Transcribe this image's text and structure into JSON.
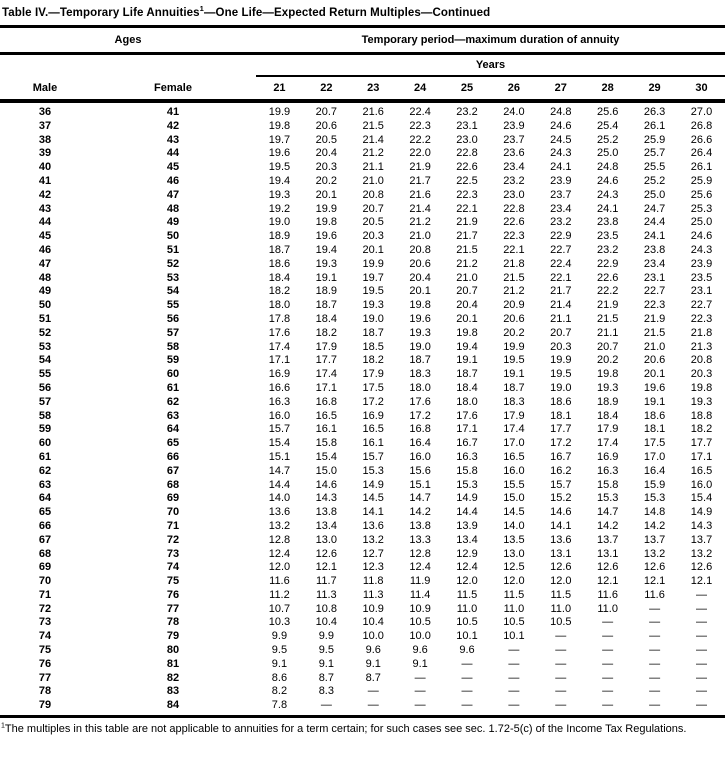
{
  "title": {
    "pre": "Table IV.—Temporary Life Annuities",
    "sup": "1",
    "post": "—One Life—Expected Return Multiples—Continued"
  },
  "header": {
    "ages_label": "Ages",
    "period_label": "Temporary period—maximum duration of annuity",
    "years_label": "Years",
    "male_label": "Male",
    "female_label": "Female",
    "year_columns": [
      "21",
      "22",
      "23",
      "24",
      "25",
      "26",
      "27",
      "28",
      "29",
      "30"
    ]
  },
  "rows": [
    {
      "male": "36",
      "female": "41",
      "values": [
        "19.9",
        "20.7",
        "21.6",
        "22.4",
        "23.2",
        "24.0",
        "24.8",
        "25.6",
        "26.3",
        "27.0"
      ]
    },
    {
      "male": "37",
      "female": "42",
      "values": [
        "19.8",
        "20.6",
        "21.5",
        "22.3",
        "23.1",
        "23.9",
        "24.6",
        "25.4",
        "26.1",
        "26.8"
      ]
    },
    {
      "male": "38",
      "female": "43",
      "values": [
        "19.7",
        "20.5",
        "21.4",
        "22.2",
        "23.0",
        "23.7",
        "24.5",
        "25.2",
        "25.9",
        "26.6"
      ]
    },
    {
      "male": "39",
      "female": "44",
      "values": [
        "19.6",
        "20.4",
        "21.2",
        "22.0",
        "22.8",
        "23.6",
        "24.3",
        "25.0",
        "25.7",
        "26.4"
      ]
    },
    {
      "male": "40",
      "female": "45",
      "values": [
        "19.5",
        "20.3",
        "21.1",
        "21.9",
        "22.6",
        "23.4",
        "24.1",
        "24.8",
        "25.5",
        "26.1"
      ]
    },
    {
      "male": "41",
      "female": "46",
      "values": [
        "19.4",
        "20.2",
        "21.0",
        "21.7",
        "22.5",
        "23.2",
        "23.9",
        "24.6",
        "25.2",
        "25.9"
      ]
    },
    {
      "male": "42",
      "female": "47",
      "values": [
        "19.3",
        "20.1",
        "20.8",
        "21.6",
        "22.3",
        "23.0",
        "23.7",
        "24.3",
        "25.0",
        "25.6"
      ]
    },
    {
      "male": "43",
      "female": "48",
      "values": [
        "19.2",
        "19.9",
        "20.7",
        "21.4",
        "22.1",
        "22.8",
        "23.4",
        "24.1",
        "24.7",
        "25.3"
      ]
    },
    {
      "male": "44",
      "female": "49",
      "values": [
        "19.0",
        "19.8",
        "20.5",
        "21.2",
        "21.9",
        "22.6",
        "23.2",
        "23.8",
        "24.4",
        "25.0"
      ]
    },
    {
      "male": "45",
      "female": "50",
      "values": [
        "18.9",
        "19.6",
        "20.3",
        "21.0",
        "21.7",
        "22.3",
        "22.9",
        "23.5",
        "24.1",
        "24.6"
      ]
    },
    {
      "male": "46",
      "female": "51",
      "values": [
        "18.7",
        "19.4",
        "20.1",
        "20.8",
        "21.5",
        "22.1",
        "22.7",
        "23.2",
        "23.8",
        "24.3"
      ]
    },
    {
      "male": "47",
      "female": "52",
      "values": [
        "18.6",
        "19.3",
        "19.9",
        "20.6",
        "21.2",
        "21.8",
        "22.4",
        "22.9",
        "23.4",
        "23.9"
      ]
    },
    {
      "male": "48",
      "female": "53",
      "values": [
        "18.4",
        "19.1",
        "19.7",
        "20.4",
        "21.0",
        "21.5",
        "22.1",
        "22.6",
        "23.1",
        "23.5"
      ]
    },
    {
      "male": "49",
      "female": "54",
      "values": [
        "18.2",
        "18.9",
        "19.5",
        "20.1",
        "20.7",
        "21.2",
        "21.7",
        "22.2",
        "22.7",
        "23.1"
      ]
    },
    {
      "male": "50",
      "female": "55",
      "values": [
        "18.0",
        "18.7",
        "19.3",
        "19.8",
        "20.4",
        "20.9",
        "21.4",
        "21.9",
        "22.3",
        "22.7"
      ]
    },
    {
      "male": "51",
      "female": "56",
      "values": [
        "17.8",
        "18.4",
        "19.0",
        "19.6",
        "20.1",
        "20.6",
        "21.1",
        "21.5",
        "21.9",
        "22.3"
      ]
    },
    {
      "male": "52",
      "female": "57",
      "values": [
        "17.6",
        "18.2",
        "18.7",
        "19.3",
        "19.8",
        "20.2",
        "20.7",
        "21.1",
        "21.5",
        "21.8"
      ]
    },
    {
      "male": "53",
      "female": "58",
      "values": [
        "17.4",
        "17.9",
        "18.5",
        "19.0",
        "19.4",
        "19.9",
        "20.3",
        "20.7",
        "21.0",
        "21.3"
      ]
    },
    {
      "male": "54",
      "female": "59",
      "values": [
        "17.1",
        "17.7",
        "18.2",
        "18.7",
        "19.1",
        "19.5",
        "19.9",
        "20.2",
        "20.6",
        "20.8"
      ]
    },
    {
      "male": "55",
      "female": "60",
      "values": [
        "16.9",
        "17.4",
        "17.9",
        "18.3",
        "18.7",
        "19.1",
        "19.5",
        "19.8",
        "20.1",
        "20.3"
      ]
    },
    {
      "male": "56",
      "female": "61",
      "values": [
        "16.6",
        "17.1",
        "17.5",
        "18.0",
        "18.4",
        "18.7",
        "19.0",
        "19.3",
        "19.6",
        "19.8"
      ]
    },
    {
      "male": "57",
      "female": "62",
      "values": [
        "16.3",
        "16.8",
        "17.2",
        "17.6",
        "18.0",
        "18.3",
        "18.6",
        "18.9",
        "19.1",
        "19.3"
      ]
    },
    {
      "male": "58",
      "female": "63",
      "values": [
        "16.0",
        "16.5",
        "16.9",
        "17.2",
        "17.6",
        "17.9",
        "18.1",
        "18.4",
        "18.6",
        "18.8"
      ]
    },
    {
      "male": "59",
      "female": "64",
      "values": [
        "15.7",
        "16.1",
        "16.5",
        "16.8",
        "17.1",
        "17.4",
        "17.7",
        "17.9",
        "18.1",
        "18.2"
      ]
    },
    {
      "male": "60",
      "female": "65",
      "values": [
        "15.4",
        "15.8",
        "16.1",
        "16.4",
        "16.7",
        "17.0",
        "17.2",
        "17.4",
        "17.5",
        "17.7"
      ]
    },
    {
      "male": "61",
      "female": "66",
      "values": [
        "15.1",
        "15.4",
        "15.7",
        "16.0",
        "16.3",
        "16.5",
        "16.7",
        "16.9",
        "17.0",
        "17.1"
      ]
    },
    {
      "male": "62",
      "female": "67",
      "values": [
        "14.7",
        "15.0",
        "15.3",
        "15.6",
        "15.8",
        "16.0",
        "16.2",
        "16.3",
        "16.4",
        "16.5"
      ]
    },
    {
      "male": "63",
      "female": "68",
      "values": [
        "14.4",
        "14.6",
        "14.9",
        "15.1",
        "15.3",
        "15.5",
        "15.7",
        "15.8",
        "15.9",
        "16.0"
      ]
    },
    {
      "male": "64",
      "female": "69",
      "values": [
        "14.0",
        "14.3",
        "14.5",
        "14.7",
        "14.9",
        "15.0",
        "15.2",
        "15.3",
        "15.3",
        "15.4"
      ]
    },
    {
      "male": "65",
      "female": "70",
      "values": [
        "13.6",
        "13.8",
        "14.1",
        "14.2",
        "14.4",
        "14.5",
        "14.6",
        "14.7",
        "14.8",
        "14.9"
      ]
    },
    {
      "male": "66",
      "female": "71",
      "values": [
        "13.2",
        "13.4",
        "13.6",
        "13.8",
        "13.9",
        "14.0",
        "14.1",
        "14.2",
        "14.2",
        "14.3"
      ]
    },
    {
      "male": "67",
      "female": "72",
      "values": [
        "12.8",
        "13.0",
        "13.2",
        "13.3",
        "13.4",
        "13.5",
        "13.6",
        "13.7",
        "13.7",
        "13.7"
      ]
    },
    {
      "male": "68",
      "female": "73",
      "values": [
        "12.4",
        "12.6",
        "12.7",
        "12.8",
        "12.9",
        "13.0",
        "13.1",
        "13.1",
        "13.2",
        "13.2"
      ]
    },
    {
      "male": "69",
      "female": "74",
      "values": [
        "12.0",
        "12.1",
        "12.3",
        "12.4",
        "12.4",
        "12.5",
        "12.6",
        "12.6",
        "12.6",
        "12.6"
      ]
    },
    {
      "male": "70",
      "female": "75",
      "values": [
        "11.6",
        "11.7",
        "11.8",
        "11.9",
        "12.0",
        "12.0",
        "12.0",
        "12.1",
        "12.1",
        "12.1"
      ]
    },
    {
      "male": "71",
      "female": "76",
      "values": [
        "11.2",
        "11.3",
        "11.3",
        "11.4",
        "11.5",
        "11.5",
        "11.5",
        "11.6",
        "11.6",
        "—"
      ]
    },
    {
      "male": "72",
      "female": "77",
      "values": [
        "10.7",
        "10.8",
        "10.9",
        "10.9",
        "11.0",
        "11.0",
        "11.0",
        "11.0",
        "—",
        "—"
      ]
    },
    {
      "male": "73",
      "female": "78",
      "values": [
        "10.3",
        "10.4",
        "10.4",
        "10.5",
        "10.5",
        "10.5",
        "10.5",
        "—",
        "—",
        "—"
      ]
    },
    {
      "male": "74",
      "female": "79",
      "values": [
        "9.9",
        "9.9",
        "10.0",
        "10.0",
        "10.1",
        "10.1",
        "—",
        "—",
        "—",
        "—"
      ]
    },
    {
      "male": "75",
      "female": "80",
      "values": [
        "9.5",
        "9.5",
        "9.6",
        "9.6",
        "9.6",
        "—",
        "—",
        "—",
        "—",
        "—"
      ]
    },
    {
      "male": "76",
      "female": "81",
      "values": [
        "9.1",
        "9.1",
        "9.1",
        "9.1",
        "—",
        "—",
        "—",
        "—",
        "—",
        "—"
      ]
    },
    {
      "male": "77",
      "female": "82",
      "values": [
        "8.6",
        "8.7",
        "8.7",
        "—",
        "—",
        "—",
        "—",
        "—",
        "—",
        "—"
      ]
    },
    {
      "male": "78",
      "female": "83",
      "values": [
        "8.2",
        "8.3",
        "—",
        "—",
        "—",
        "—",
        "—",
        "—",
        "—",
        "—"
      ]
    },
    {
      "male": "79",
      "female": "84",
      "values": [
        "7.8",
        "—",
        "—",
        "—",
        "—",
        "—",
        "—",
        "—",
        "—",
        "—"
      ]
    }
  ],
  "footnote": {
    "sup": "1",
    "text": "The multiples in this table are not applicable to annuities for a term certain; for such cases see sec. 1.72-5(c) of the Income Tax Regulations."
  }
}
